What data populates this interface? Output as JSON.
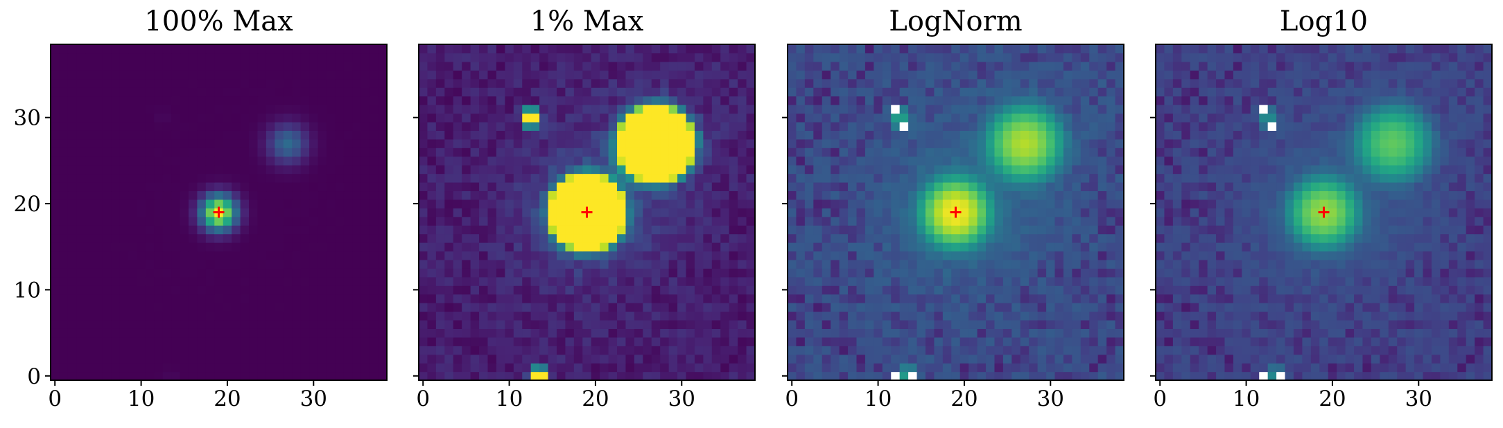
{
  "chart_data": [
    {
      "type": "heatmap",
      "title": "100% Max",
      "stretch": "linear",
      "vmax_fraction": 1.0,
      "xlim": [
        -0.5,
        38.5
      ],
      "ylim": [
        -0.5,
        38.5
      ],
      "xticks": [
        0,
        10,
        20,
        30
      ],
      "yticks": [
        0,
        10,
        20,
        30
      ],
      "marker": {
        "x": 19,
        "y": 19,
        "symbol": "+",
        "color": "#ff0000"
      },
      "colormap": "viridis",
      "sources": [
        {
          "x": 19,
          "y": 19,
          "amplitude": 1.0,
          "sigma": 1.4
        },
        {
          "x": 27,
          "y": 27,
          "amplitude": 0.35,
          "sigma": 1.6
        },
        {
          "x": 12.5,
          "y": 30,
          "amplitude": 0.02,
          "sigma": 0.6
        },
        {
          "x": 13.5,
          "y": 0,
          "amplitude": 0.02,
          "sigma": 0.6
        }
      ]
    },
    {
      "type": "heatmap",
      "title": "1% Max",
      "stretch": "linear",
      "vmax_fraction": 0.01,
      "xlim": [
        -0.5,
        38.5
      ],
      "ylim": [
        -0.5,
        38.5
      ],
      "xticks": [
        0,
        10,
        20,
        30
      ],
      "yticks": [
        0,
        10,
        20,
        30
      ],
      "marker": {
        "x": 19,
        "y": 19,
        "symbol": "+",
        "color": "#ff0000"
      },
      "colormap": "viridis"
    },
    {
      "type": "heatmap",
      "title": "LogNorm",
      "stretch": "log",
      "xlim": [
        -0.5,
        38.5
      ],
      "ylim": [
        -0.5,
        38.5
      ],
      "xticks": [
        0,
        10,
        20,
        30
      ],
      "yticks": [
        0,
        10,
        20,
        30
      ],
      "marker": {
        "x": 19,
        "y": 19,
        "symbol": "+",
        "color": "#ff0000"
      },
      "colormap": "viridis"
    },
    {
      "type": "heatmap",
      "title": "Log10",
      "stretch": "log10",
      "xlim": [
        -0.5,
        38.5
      ],
      "ylim": [
        -0.5,
        38.5
      ],
      "xticks": [
        0,
        10,
        20,
        30
      ],
      "yticks": [
        0,
        10,
        20,
        30
      ],
      "marker": {
        "x": 19,
        "y": 19,
        "symbol": "+",
        "color": "#ff0000"
      },
      "colormap": "viridis"
    }
  ],
  "colors": {
    "viridis_low": "#440154",
    "viridis_high": "#fde725",
    "marker": "#ff0000",
    "missing": "#ffffff"
  }
}
